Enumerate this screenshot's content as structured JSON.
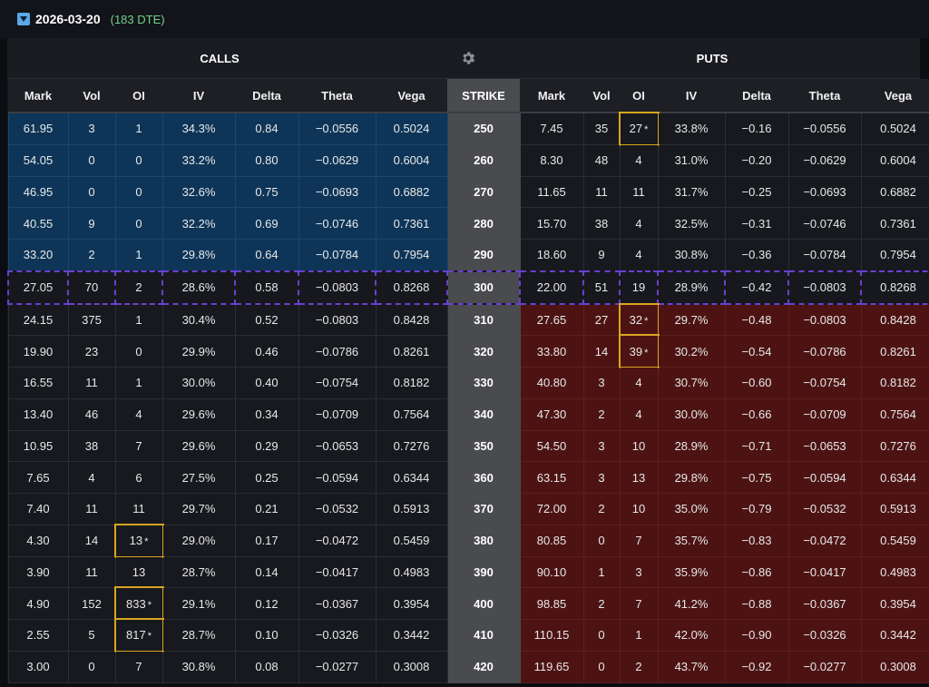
{
  "expiry": {
    "date": "2026-03-20",
    "dte": "(183 DTE)"
  },
  "header": {
    "calls_label": "CALLS",
    "puts_label": "PUTS",
    "settings_icon": "gear-icon"
  },
  "columns": {
    "calls": [
      "Mark",
      "Vol",
      "OI",
      "IV",
      "Delta",
      "Theta",
      "Vega"
    ],
    "strike": "STRIKE",
    "puts": [
      "Mark",
      "Vol",
      "OI",
      "IV",
      "Delta",
      "Theta",
      "Vega"
    ]
  },
  "colors": {
    "itm_call": "#0e3558",
    "itm_put": "#4d1313",
    "strike_column": "#4a4b4e",
    "atm_outline": "#6b3fd0",
    "highlight_box": "#d9a520",
    "dte": "#74d18a"
  },
  "rows": [
    {
      "call": [
        "61.95",
        "3",
        "1",
        "34.3%",
        "0.84",
        "-0.0556",
        "0.5024"
      ],
      "strike": "250",
      "put": [
        "7.45",
        "35",
        "27",
        "33.8%",
        "-0.16",
        "-0.0556",
        "0.5024"
      ],
      "zone": "itm-call",
      "call_oi_flag": "",
      "put_oi_flag": "*"
    },
    {
      "call": [
        "54.05",
        "0",
        "0",
        "33.2%",
        "0.80",
        "-0.0629",
        "0.6004"
      ],
      "strike": "260",
      "put": [
        "8.30",
        "48",
        "4",
        "31.0%",
        "-0.20",
        "-0.0629",
        "0.6004"
      ],
      "zone": "itm-call",
      "call_oi_flag": "",
      "put_oi_flag": ""
    },
    {
      "call": [
        "46.95",
        "0",
        "0",
        "32.6%",
        "0.75",
        "-0.0693",
        "0.6882"
      ],
      "strike": "270",
      "put": [
        "11.65",
        "11",
        "11",
        "31.7%",
        "-0.25",
        "-0.0693",
        "0.6882"
      ],
      "zone": "itm-call",
      "call_oi_flag": "",
      "put_oi_flag": ""
    },
    {
      "call": [
        "40.55",
        "9",
        "0",
        "32.2%",
        "0.69",
        "-0.0746",
        "0.7361"
      ],
      "strike": "280",
      "put": [
        "15.70",
        "38",
        "4",
        "32.5%",
        "-0.31",
        "-0.0746",
        "0.7361"
      ],
      "zone": "itm-call",
      "call_oi_flag": "",
      "put_oi_flag": ""
    },
    {
      "call": [
        "33.20",
        "2",
        "1",
        "29.8%",
        "0.64",
        "-0.0784",
        "0.7954"
      ],
      "strike": "290",
      "put": [
        "18.60",
        "9",
        "4",
        "30.8%",
        "-0.36",
        "-0.0784",
        "0.7954"
      ],
      "zone": "itm-call",
      "call_oi_flag": "",
      "put_oi_flag": ""
    },
    {
      "call": [
        "27.05",
        "70",
        "2",
        "28.6%",
        "0.58",
        "-0.0803",
        "0.8268"
      ],
      "strike": "300",
      "put": [
        "22.00",
        "51",
        "19",
        "28.9%",
        "-0.42",
        "-0.0803",
        "0.8268"
      ],
      "zone": "atm",
      "call_oi_flag": "",
      "put_oi_flag": ""
    },
    {
      "call": [
        "24.15",
        "375",
        "1",
        "30.4%",
        "0.52",
        "-0.0803",
        "0.8428"
      ],
      "strike": "310",
      "put": [
        "27.65",
        "27",
        "32",
        "29.7%",
        "-0.48",
        "-0.0803",
        "0.8428"
      ],
      "zone": "itm-put",
      "call_oi_flag": "",
      "put_oi_flag": "*"
    },
    {
      "call": [
        "19.90",
        "23",
        "0",
        "29.9%",
        "0.46",
        "-0.0786",
        "0.8261"
      ],
      "strike": "320",
      "put": [
        "33.80",
        "14",
        "39",
        "30.2%",
        "-0.54",
        "-0.0786",
        "0.8261"
      ],
      "zone": "itm-put",
      "call_oi_flag": "",
      "put_oi_flag": "*"
    },
    {
      "call": [
        "16.55",
        "11",
        "1",
        "30.0%",
        "0.40",
        "-0.0754",
        "0.8182"
      ],
      "strike": "330",
      "put": [
        "40.80",
        "3",
        "4",
        "30.7%",
        "-0.60",
        "-0.0754",
        "0.8182"
      ],
      "zone": "itm-put",
      "call_oi_flag": "",
      "put_oi_flag": ""
    },
    {
      "call": [
        "13.40",
        "46",
        "4",
        "29.6%",
        "0.34",
        "-0.0709",
        "0.7564"
      ],
      "strike": "340",
      "put": [
        "47.30",
        "2",
        "4",
        "30.0%",
        "-0.66",
        "-0.0709",
        "0.7564"
      ],
      "zone": "itm-put",
      "call_oi_flag": "",
      "put_oi_flag": ""
    },
    {
      "call": [
        "10.95",
        "38",
        "7",
        "29.6%",
        "0.29",
        "-0.0653",
        "0.7276"
      ],
      "strike": "350",
      "put": [
        "54.50",
        "3",
        "10",
        "28.9%",
        "-0.71",
        "-0.0653",
        "0.7276"
      ],
      "zone": "itm-put",
      "call_oi_flag": "",
      "put_oi_flag": ""
    },
    {
      "call": [
        "7.65",
        "4",
        "6",
        "27.5%",
        "0.25",
        "-0.0594",
        "0.6344"
      ],
      "strike": "360",
      "put": [
        "63.15",
        "3",
        "13",
        "29.8%",
        "-0.75",
        "-0.0594",
        "0.6344"
      ],
      "zone": "itm-put",
      "call_oi_flag": "",
      "put_oi_flag": ""
    },
    {
      "call": [
        "7.40",
        "11",
        "11",
        "29.7%",
        "0.21",
        "-0.0532",
        "0.5913"
      ],
      "strike": "370",
      "put": [
        "72.00",
        "2",
        "10",
        "35.0%",
        "-0.79",
        "-0.0532",
        "0.5913"
      ],
      "zone": "itm-put",
      "call_oi_flag": "",
      "put_oi_flag": ""
    },
    {
      "call": [
        "4.30",
        "14",
        "13",
        "29.0%",
        "0.17",
        "-0.0472",
        "0.5459"
      ],
      "strike": "380",
      "put": [
        "80.85",
        "0",
        "7",
        "35.7%",
        "-0.83",
        "-0.0472",
        "0.5459"
      ],
      "zone": "itm-put",
      "call_oi_flag": "*",
      "put_oi_flag": ""
    },
    {
      "call": [
        "3.90",
        "11",
        "13",
        "28.7%",
        "0.14",
        "-0.0417",
        "0.4983"
      ],
      "strike": "390",
      "put": [
        "90.10",
        "1",
        "3",
        "35.9%",
        "-0.86",
        "-0.0417",
        "0.4983"
      ],
      "zone": "itm-put",
      "call_oi_flag": "",
      "put_oi_flag": ""
    },
    {
      "call": [
        "4.90",
        "152",
        "833",
        "29.1%",
        "0.12",
        "-0.0367",
        "0.3954"
      ],
      "strike": "400",
      "put": [
        "98.85",
        "2",
        "7",
        "41.2%",
        "-0.88",
        "-0.0367",
        "0.3954"
      ],
      "zone": "itm-put",
      "call_oi_flag": "*",
      "put_oi_flag": ""
    },
    {
      "call": [
        "2.55",
        "5",
        "817",
        "28.7%",
        "0.10",
        "-0.0326",
        "0.3442"
      ],
      "strike": "410",
      "put": [
        "110.15",
        "0",
        "1",
        "42.0%",
        "-0.90",
        "-0.0326",
        "0.3442"
      ],
      "zone": "itm-put",
      "call_oi_flag": "*",
      "put_oi_flag": ""
    },
    {
      "call": [
        "3.00",
        "0",
        "7",
        "30.8%",
        "0.08",
        "-0.0277",
        "0.3008"
      ],
      "strike": "420",
      "put": [
        "119.65",
        "0",
        "2",
        "43.7%",
        "-0.92",
        "-0.0277",
        "0.3008"
      ],
      "zone": "itm-put",
      "call_oi_flag": "",
      "put_oi_flag": ""
    }
  ]
}
